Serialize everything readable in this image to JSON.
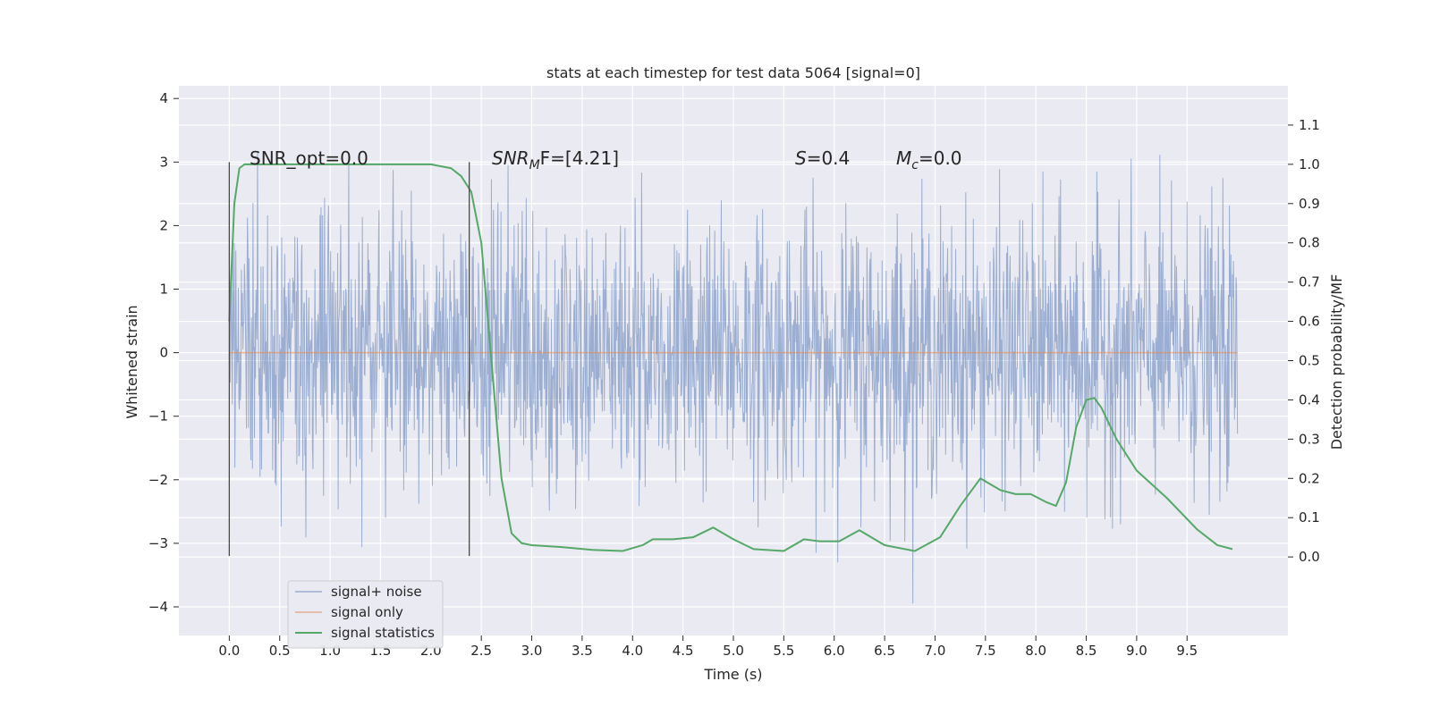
{
  "chart_data": {
    "type": "line",
    "title": "stats at each timestep for test data 5064 [signal=0]",
    "xlabel": "Time (s)",
    "ylabel_left": "Whitened strain",
    "ylabel_right": "Detection probability/MF",
    "xlim": [
      -0.5,
      10.5
    ],
    "ylim_left": [
      -4.45,
      4.2
    ],
    "ylim_right": [
      -0.2,
      1.2
    ],
    "x_ticks": [
      "0.0",
      "0.5",
      "1.0",
      "1.5",
      "2.0",
      "2.5",
      "3.0",
      "3.5",
      "4.0",
      "4.5",
      "5.0",
      "5.5",
      "6.0",
      "6.5",
      "7.0",
      "7.5",
      "8.0",
      "8.5",
      "9.0",
      "9.5"
    ],
    "y_ticks_left": [
      "4",
      "3",
      "2",
      "1",
      "0",
      "−1",
      "−2",
      "−3",
      "−4"
    ],
    "y_ticks_right": [
      "1.1",
      "1.0",
      "0.9",
      "0.8",
      "0.7",
      "0.6",
      "0.5",
      "0.4",
      "0.3",
      "0.2",
      "0.1",
      "0.0"
    ],
    "grid": true,
    "legend_position": "lower-left",
    "annotations": {
      "snr_opt": "SNR_opt=0.0",
      "snr_mf_label": "SNR",
      "snr_mf_sub": "M",
      "snr_mf_rest": "F=[4.21]",
      "s_label": "S",
      "s_rest": "=0.4",
      "mc_label": "M",
      "mc_sub": "c",
      "mc_rest": "=0.0"
    },
    "vlines_x": [
      0.0,
      2.38
    ],
    "vlines_ylim": [
      -3.2,
      3.0
    ],
    "series": [
      {
        "name": "signal+ noise",
        "color": "#4c72b0",
        "description": "whitened noise strain, approx Gaussian, range about -4 to 4",
        "x_range": [
          0.0,
          10.0
        ]
      },
      {
        "name": "signal only",
        "color": "#dd8452",
        "x": [
          0.0,
          10.0
        ],
        "y": [
          0.0,
          0.0
        ]
      },
      {
        "name": "signal statistics",
        "color": "#55a868",
        "axis": "right",
        "x": [
          0.0,
          0.05,
          0.1,
          0.15,
          0.3,
          0.5,
          1.0,
          1.5,
          2.0,
          2.2,
          2.3,
          2.4,
          2.5,
          2.6,
          2.7,
          2.8,
          2.9,
          3.0,
          3.3,
          3.6,
          3.9,
          4.1,
          4.2,
          4.4,
          4.6,
          4.8,
          5.0,
          5.2,
          5.5,
          5.7,
          5.85,
          6.05,
          6.25,
          6.5,
          6.8,
          7.05,
          7.25,
          7.45,
          7.65,
          7.8,
          7.95,
          8.1,
          8.2,
          8.3,
          8.4,
          8.5,
          8.58,
          8.65,
          8.8,
          9.0,
          9.3,
          9.6,
          9.8,
          9.95
        ],
        "y": [
          0.6,
          0.9,
          0.99,
          1.0,
          1.0,
          1.0,
          1.0,
          1.0,
          1.0,
          0.99,
          0.97,
          0.93,
          0.8,
          0.5,
          0.2,
          0.06,
          0.035,
          0.03,
          0.025,
          0.018,
          0.015,
          0.03,
          0.045,
          0.045,
          0.05,
          0.075,
          0.045,
          0.02,
          0.015,
          0.045,
          0.04,
          0.04,
          0.068,
          0.03,
          0.015,
          0.05,
          0.13,
          0.2,
          0.17,
          0.16,
          0.16,
          0.14,
          0.13,
          0.19,
          0.33,
          0.4,
          0.405,
          0.38,
          0.3,
          0.22,
          0.15,
          0.07,
          0.03,
          0.02
        ]
      }
    ]
  }
}
